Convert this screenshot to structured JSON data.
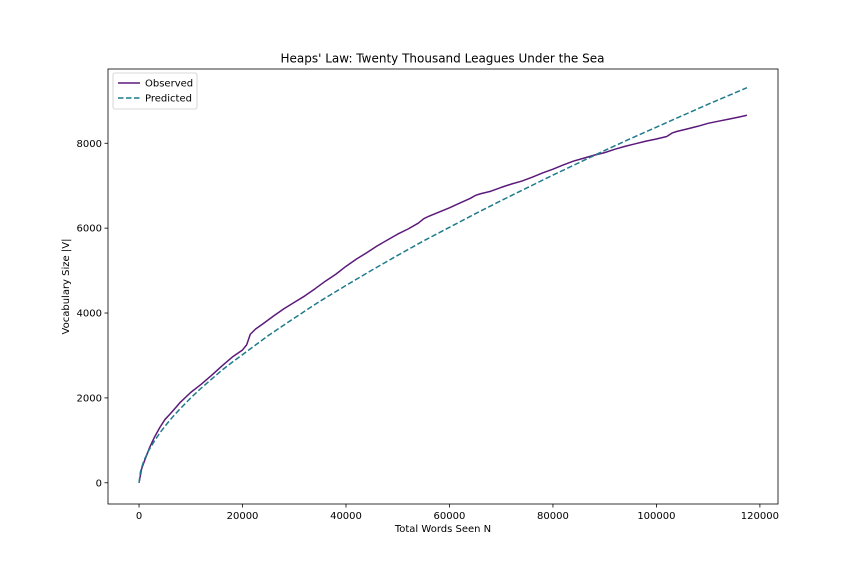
{
  "chart_data": {
    "type": "line",
    "title": "Heaps' Law: Twenty Thousand Leagues Under the Sea",
    "xlabel": "Total Words Seen N",
    "ylabel": "Vocabulary Size |V|",
    "xlim": [
      -6000,
      123500
    ],
    "ylim": [
      -500,
      9750
    ],
    "xticks": [
      0,
      20000,
      40000,
      60000,
      80000,
      100000,
      120000
    ],
    "yticks": [
      0,
      2000,
      4000,
      6000,
      8000
    ],
    "grid": false,
    "legend": "top-left",
    "series": [
      {
        "name": "Observed",
        "color": "#5b1a7a",
        "style": "solid",
        "x": [
          0,
          500,
          1000,
          2000,
          3000,
          4000,
          5000,
          6000,
          7000,
          8000,
          10000,
          12000,
          14000,
          16000,
          18000,
          20000,
          20800,
          21500,
          22500,
          24000,
          26000,
          28000,
          30000,
          32000,
          34000,
          36000,
          38000,
          40000,
          42000,
          44000,
          46000,
          48000,
          50000,
          52000,
          54000,
          55000,
          56000,
          58000,
          60000,
          62000,
          64000,
          65000,
          66000,
          68000,
          70000,
          72000,
          74000,
          76000,
          78000,
          80000,
          82000,
          84000,
          86000,
          88000,
          90000,
          92000,
          94000,
          96000,
          98000,
          100000,
          102000,
          103000,
          104000,
          106000,
          108000,
          110000,
          112000,
          114000,
          116000,
          117500
        ],
        "y": [
          0,
          330,
          500,
          820,
          1080,
          1300,
          1490,
          1620,
          1760,
          1900,
          2130,
          2320,
          2530,
          2750,
          2960,
          3130,
          3250,
          3500,
          3620,
          3750,
          3930,
          4100,
          4250,
          4400,
          4570,
          4750,
          4910,
          5100,
          5270,
          5420,
          5580,
          5720,
          5860,
          5980,
          6120,
          6220,
          6280,
          6380,
          6480,
          6590,
          6700,
          6770,
          6810,
          6870,
          6960,
          7040,
          7110,
          7200,
          7300,
          7390,
          7490,
          7580,
          7650,
          7720,
          7780,
          7860,
          7930,
          7990,
          8050,
          8100,
          8160,
          8240,
          8280,
          8340,
          8400,
          8470,
          8520,
          8570,
          8620,
          8660
        ]
      },
      {
        "name": "Predicted",
        "color": "#1f7b8c",
        "style": "dashed",
        "x": [
          0,
          250,
          500,
          1000,
          2000,
          3000,
          4000,
          5000,
          6000,
          7000,
          8000,
          10000,
          12000,
          14000,
          16000,
          18000,
          20000,
          25000,
          30000,
          35000,
          40000,
          45000,
          50000,
          55000,
          60000,
          65000,
          70000,
          75000,
          80000,
          85000,
          90000,
          95000,
          100000,
          105000,
          110000,
          115000,
          117500
        ],
        "y": [
          0,
          240,
          360,
          540,
          790,
          990,
          1170,
          1330,
          1480,
          1620,
          1750,
          2000,
          2230,
          2440,
          2650,
          2840,
          3020,
          3470,
          3880,
          4280,
          4650,
          5010,
          5360,
          5700,
          6020,
          6340,
          6650,
          6950,
          7250,
          7540,
          7830,
          8110,
          8380,
          8650,
          8920,
          9180,
          9310
        ]
      }
    ]
  }
}
